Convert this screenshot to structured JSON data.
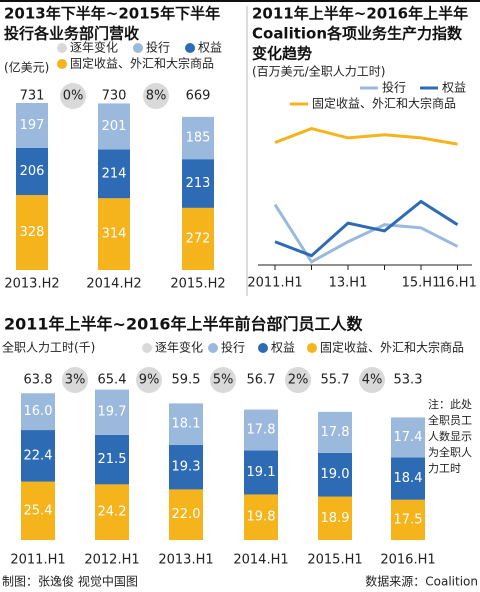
{
  "chart_data": [
    {
      "type": "stacked_bar",
      "title": [
        "2013年下半年~2015年下半年",
        "投行各业务部门营收"
      ],
      "unit": "(亿美元)",
      "categories": [
        "2013.H2",
        "2014.H2",
        "2015.H2"
      ],
      "series": [
        {
          "name": "固定收益、外汇和大宗商品",
          "color": "#f5b31c",
          "values": [
            328,
            314,
            272
          ]
        },
        {
          "name": "权益",
          "color": "#2d6cb4",
          "values": [
            206,
            214,
            213
          ]
        },
        {
          "name": "投行",
          "color": "#9bb9dd",
          "values": [
            197,
            201,
            185
          ]
        }
      ],
      "totals": [
        731,
        730,
        669
      ],
      "change": {
        "name": "逐年变化",
        "color": "#d9d9d9",
        "values": [
          0,
          8
        ],
        "value_labels": [
          "0%",
          "8%"
        ]
      }
    },
    {
      "type": "line",
      "title": [
        "2011年上半年~2016年上半年",
        "Coalition各项业务生产力指数",
        "变化趋势"
      ],
      "unit": "(百万美元/全职人力工时)",
      "categories": [
        "2011.H1",
        null,
        "13.H1",
        null,
        "15.H1",
        "16.H1"
      ],
      "ylim": [
        0,
        100
      ],
      "series": [
        {
          "name": "投行",
          "color": "#9bb9dd",
          "values": [
            39,
            2,
            15,
            26,
            24,
            12
          ]
        },
        {
          "name": "权益",
          "color": "#2d6cb4",
          "values": [
            15,
            6,
            27,
            22,
            41,
            26
          ]
        },
        {
          "name": "固定收益、外汇和大宗商品",
          "color": "#f5b31c",
          "values": [
            79,
            88,
            82,
            84,
            82,
            78
          ]
        }
      ]
    },
    {
      "type": "stacked_bar",
      "title": [
        "2011年上半年~2016年上半年前台部门员工人数"
      ],
      "unit": "全职人力工时(千)",
      "categories": [
        "2011.H1",
        "2012.H1",
        "2013.H1",
        "2014.H1",
        "2015.H1",
        "2016.H1"
      ],
      "series": [
        {
          "name": "固定收益、外汇和大宗商品",
          "color": "#f5b31c",
          "values": [
            25.4,
            24.2,
            22.0,
            19.8,
            18.9,
            17.5
          ],
          "value_labels": [
            "25.4",
            "24.2",
            "22.0",
            "19.8",
            "18.9",
            "17.5"
          ]
        },
        {
          "name": "权益",
          "color": "#2d6cb4",
          "values": [
            22.4,
            21.5,
            19.3,
            19.1,
            19.0,
            18.4
          ],
          "value_labels": [
            "22.4",
            "21.5",
            "19.3",
            "19.1",
            "19.0",
            "18.4"
          ]
        },
        {
          "name": "投行",
          "color": "#9bb9dd",
          "values": [
            16.0,
            19.7,
            18.1,
            17.8,
            17.8,
            17.4
          ],
          "value_labels": [
            "16.0",
            "19.7",
            "18.1",
            "17.8",
            "17.8",
            "17.4"
          ]
        }
      ],
      "totals": [
        63.8,
        65.4,
        59.5,
        56.7,
        55.7,
        53.3
      ],
      "change": {
        "name": "逐年变化",
        "color": "#d9d9d9",
        "values": [
          3,
          9,
          5,
          2,
          4
        ],
        "value_labels": [
          "3%",
          "9%",
          "5%",
          "2%",
          "4%"
        ]
      }
    }
  ],
  "note": [
    "注：此处",
    "全职员工",
    "人数显示",
    "为全职人",
    "力工时"
  ],
  "footer": {
    "credit": "制图：张逸俊 视觉中国图",
    "source": "数据来源：Coalition"
  }
}
